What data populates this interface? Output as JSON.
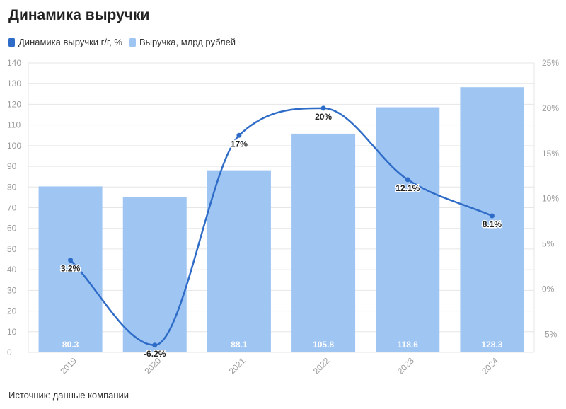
{
  "title": "Динамика выручки",
  "source": "Источник: данные компании",
  "legend": {
    "line_label": "Динамика выручки г/г, %",
    "bar_label": "Выручка, млрд рублей"
  },
  "colors": {
    "bar": "#9fc5f3",
    "line": "#2e6cc7",
    "bar_label_text": "#ffffff",
    "grid": "#e6e6e6",
    "axis_text": "#9a9a9a"
  },
  "chart_data": {
    "type": "bar",
    "categories": [
      "2019",
      "2020",
      "2021",
      "2022",
      "2023",
      "2024"
    ],
    "series": [
      {
        "name": "Выручка, млрд рублей",
        "type": "bar",
        "axis": "left",
        "values": [
          80.3,
          75.3,
          88.1,
          105.8,
          118.6,
          128.3
        ],
        "data_labels": [
          "80.3",
          "",
          "88.1",
          "105.8",
          "118.6",
          "128.3"
        ]
      },
      {
        "name": "Динамика выручки г/г, %",
        "type": "line",
        "axis": "right",
        "smooth": true,
        "values": [
          3.2,
          -6.2,
          17,
          20,
          12.1,
          8.1
        ],
        "data_labels": [
          "3.2%",
          "-6.2%",
          "17%",
          "20%",
          "12.1%",
          "8.1%"
        ]
      }
    ],
    "y_left": {
      "min": 0,
      "max": 140,
      "step": 10,
      "ticks": [
        "0",
        "10",
        "20",
        "30",
        "40",
        "50",
        "60",
        "70",
        "80",
        "90",
        "100",
        "110",
        "120",
        "130",
        "140"
      ]
    },
    "y_right": {
      "min": -7,
      "max": 25,
      "tick_values": [
        -5,
        0,
        5,
        10,
        15,
        20,
        25
      ],
      "ticks": [
        "-5%",
        "0%",
        "5%",
        "10%",
        "15%",
        "20%",
        "25%"
      ]
    },
    "grid": true,
    "legend_position": "top-left"
  }
}
